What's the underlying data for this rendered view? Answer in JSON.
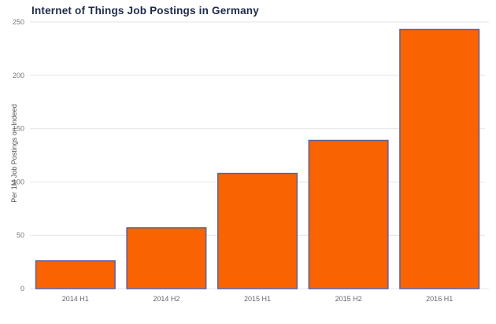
{
  "chart_data": {
    "type": "bar",
    "title": "Internet of Things Job Postings in Germany",
    "xlabel": "",
    "ylabel": "Per 1M Job Postings on Indeed",
    "categories": [
      "2014 H1",
      "2014 H2",
      "2015 H1",
      "2015 H2",
      "2016 H1"
    ],
    "values": [
      26,
      57,
      108,
      139,
      243
    ],
    "ylim": [
      0,
      250
    ],
    "yticks": [
      0,
      50,
      100,
      150,
      200,
      250
    ],
    "grid": true,
    "legend": "none",
    "colors": {
      "bar_fill": "#f96302",
      "bar_border": "#5c61a0",
      "gridline": "#e4e4e4",
      "title_text": "#1e2a4a",
      "tick_text": "#777777",
      "background": "#ffffff"
    }
  }
}
